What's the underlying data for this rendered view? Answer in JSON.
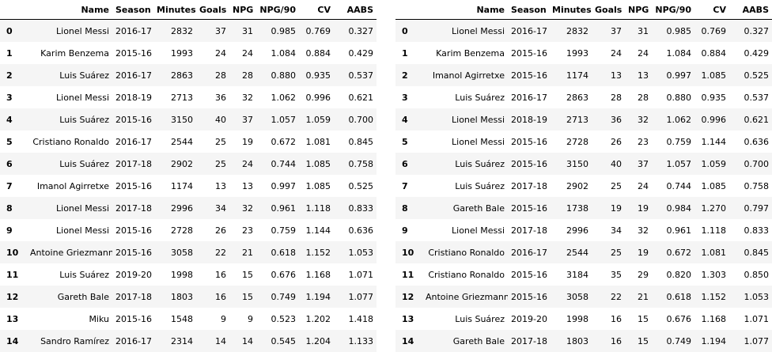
{
  "columns": [
    "",
    "Name",
    "Season",
    "Minutes",
    "Goals",
    "NPG",
    "NPG/90",
    "CV",
    "AABS"
  ],
  "left_table": [
    [
      "0",
      "Lionel Messi",
      "2016-17",
      "2832",
      "37",
      "31",
      "0.985",
      "0.769",
      "0.327"
    ],
    [
      "1",
      "Karim Benzema",
      "2015-16",
      "1993",
      "24",
      "24",
      "1.084",
      "0.884",
      "0.429"
    ],
    [
      "2",
      "Luis Suárez",
      "2016-17",
      "2863",
      "28",
      "28",
      "0.880",
      "0.935",
      "0.537"
    ],
    [
      "3",
      "Lionel Messi",
      "2018-19",
      "2713",
      "36",
      "32",
      "1.062",
      "0.996",
      "0.621"
    ],
    [
      "4",
      "Luis Suárez",
      "2015-16",
      "3150",
      "40",
      "37",
      "1.057",
      "1.059",
      "0.700"
    ],
    [
      "5",
      "Cristiano Ronaldo",
      "2016-17",
      "2544",
      "25",
      "19",
      "0.672",
      "1.081",
      "0.845"
    ],
    [
      "6",
      "Luis Suárez",
      "2017-18",
      "2902",
      "25",
      "24",
      "0.744",
      "1.085",
      "0.758"
    ],
    [
      "7",
      "Imanol Agirretxe",
      "2015-16",
      "1174",
      "13",
      "13",
      "0.997",
      "1.085",
      "0.525"
    ],
    [
      "8",
      "Lionel Messi",
      "2017-18",
      "2996",
      "34",
      "32",
      "0.961",
      "1.118",
      "0.833"
    ],
    [
      "9",
      "Lionel Messi",
      "2015-16",
      "2728",
      "26",
      "23",
      "0.759",
      "1.144",
      "0.636"
    ],
    [
      "10",
      "Antoine Griezmann",
      "2015-16",
      "3058",
      "22",
      "21",
      "0.618",
      "1.152",
      "1.053"
    ],
    [
      "11",
      "Luis Suárez",
      "2019-20",
      "1998",
      "16",
      "15",
      "0.676",
      "1.168",
      "1.071"
    ],
    [
      "12",
      "Gareth Bale",
      "2017-18",
      "1803",
      "16",
      "15",
      "0.749",
      "1.194",
      "1.077"
    ],
    [
      "13",
      "Miku",
      "2015-16",
      "1548",
      "9",
      "9",
      "0.523",
      "1.202",
      "1.418"
    ],
    [
      "14",
      "Sandro Ramírez",
      "2016-17",
      "2314",
      "14",
      "14",
      "0.545",
      "1.204",
      "1.133"
    ]
  ],
  "right_table": [
    [
      "0",
      "Lionel Messi",
      "2016-17",
      "2832",
      "37",
      "31",
      "0.985",
      "0.769",
      "0.327"
    ],
    [
      "1",
      "Karim Benzema",
      "2015-16",
      "1993",
      "24",
      "24",
      "1.084",
      "0.884",
      "0.429"
    ],
    [
      "2",
      "Imanol Agirretxe",
      "2015-16",
      "1174",
      "13",
      "13",
      "0.997",
      "1.085",
      "0.525"
    ],
    [
      "3",
      "Luis Suárez",
      "2016-17",
      "2863",
      "28",
      "28",
      "0.880",
      "0.935",
      "0.537"
    ],
    [
      "4",
      "Lionel Messi",
      "2018-19",
      "2713",
      "36",
      "32",
      "1.062",
      "0.996",
      "0.621"
    ],
    [
      "5",
      "Lionel Messi",
      "2015-16",
      "2728",
      "26",
      "23",
      "0.759",
      "1.144",
      "0.636"
    ],
    [
      "6",
      "Luis Suárez",
      "2015-16",
      "3150",
      "40",
      "37",
      "1.057",
      "1.059",
      "0.700"
    ],
    [
      "7",
      "Luis Suárez",
      "2017-18",
      "2902",
      "25",
      "24",
      "0.744",
      "1.085",
      "0.758"
    ],
    [
      "8",
      "Gareth Bale",
      "2015-16",
      "1738",
      "19",
      "19",
      "0.984",
      "1.270",
      "0.797"
    ],
    [
      "9",
      "Lionel Messi",
      "2017-18",
      "2996",
      "34",
      "32",
      "0.961",
      "1.118",
      "0.833"
    ],
    [
      "10",
      "Cristiano Ronaldo",
      "2016-17",
      "2544",
      "25",
      "19",
      "0.672",
      "1.081",
      "0.845"
    ],
    [
      "11",
      "Cristiano Ronaldo",
      "2015-16",
      "3184",
      "35",
      "29",
      "0.820",
      "1.303",
      "0.850"
    ],
    [
      "12",
      "Antoine Griezmann",
      "2015-16",
      "3058",
      "22",
      "21",
      "0.618",
      "1.152",
      "1.053"
    ],
    [
      "13",
      "Luis Suárez",
      "2019-20",
      "1998",
      "16",
      "15",
      "0.676",
      "1.168",
      "1.071"
    ],
    [
      "14",
      "Gareth Bale",
      "2017-18",
      "1803",
      "16",
      "15",
      "0.749",
      "1.194",
      "1.077"
    ]
  ]
}
